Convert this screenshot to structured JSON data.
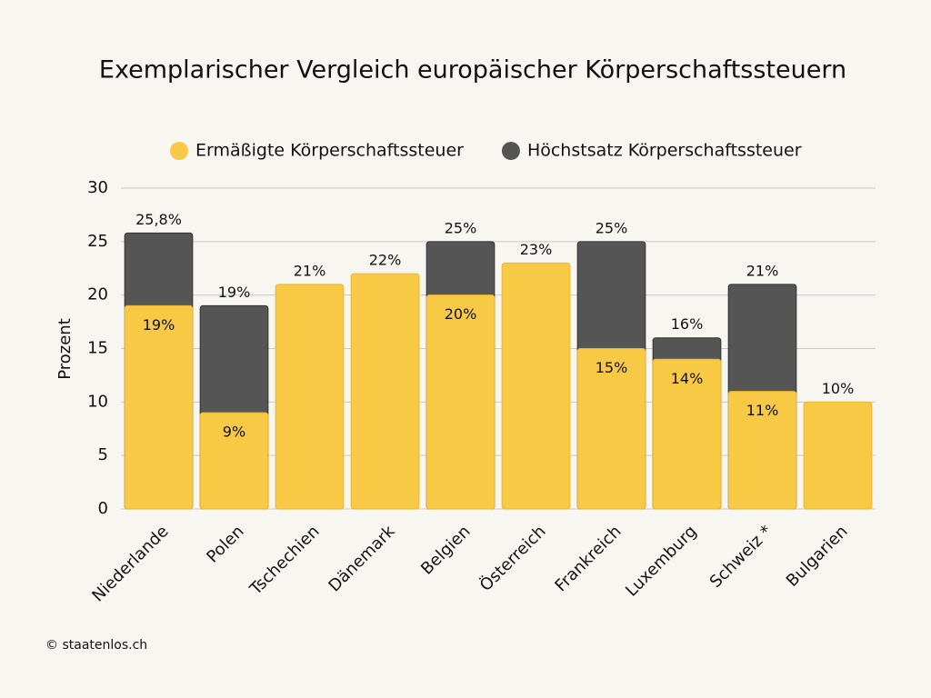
{
  "chart_data": {
    "type": "bar",
    "overlap": true,
    "title": "Exemplarischer Vergleich europäischer Körperschaftssteuern",
    "y_label": "Prozent",
    "source": "© staatenlos.ch",
    "categories": [
      "Niederlande",
      "Polen",
      "Tschechien",
      "Dänemark",
      "Belgien",
      "Österreich",
      "Frankreich",
      "Luxemburg",
      "Schweiz *",
      "Bulgarien"
    ],
    "series": [
      {
        "name": "Höchstsatz Körperschaftssteuer",
        "color": "#555555",
        "values": [
          25.8,
          19,
          null,
          null,
          25,
          null,
          25,
          16,
          21,
          null
        ],
        "value_labels": [
          "25,8%",
          "19%",
          null,
          null,
          "25%",
          null,
          "25%",
          "16%",
          "21%",
          null
        ]
      },
      {
        "name": "Ermäßigte Körperschaftssteuer",
        "color": "#f8c944",
        "values": [
          19,
          9,
          21,
          22,
          20,
          23,
          15,
          14,
          11,
          10
        ],
        "value_labels": [
          "19%",
          "9%",
          "21%",
          "22%",
          "20%",
          "23%",
          "15%",
          "14%",
          "11%",
          "10%"
        ]
      }
    ],
    "legend_order": [
      1,
      0
    ],
    "ylim": [
      0,
      30
    ],
    "yticks": [
      0,
      5,
      10,
      15,
      20,
      25,
      30
    ],
    "grid": true
  }
}
